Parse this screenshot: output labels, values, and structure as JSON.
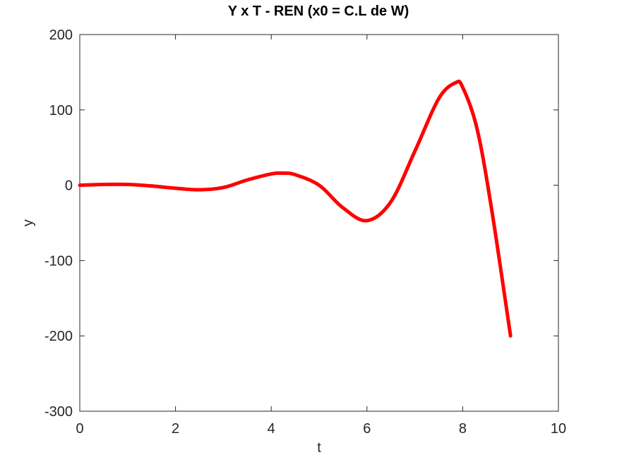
{
  "chart_data": {
    "type": "line",
    "title": "Y x T - REN (x0 = C.L de W)",
    "xlabel": "t",
    "ylabel": "y",
    "xlim": [
      0,
      10
    ],
    "ylim": [
      -300,
      200
    ],
    "xticks": [
      "0",
      "2",
      "4",
      "6",
      "8",
      "10"
    ],
    "yticks": [
      "200",
      "100",
      "0",
      "-100",
      "-200",
      "-300"
    ],
    "grid": false,
    "line_color": "#ff0000",
    "series": [
      {
        "x": [
          0,
          0.5,
          1.0,
          1.5,
          2.0,
          2.5,
          3.0,
          3.5,
          4.0,
          4.25,
          4.5,
          5.0,
          5.5,
          6.0,
          6.5,
          7.0,
          7.5,
          7.85,
          8.0,
          8.3,
          8.6,
          9.0
        ],
        "y": [
          0,
          1,
          1,
          -1,
          -4,
          -6,
          -3,
          7,
          15,
          16,
          14,
          0,
          -30,
          -47,
          -22,
          45,
          115,
          136,
          130,
          75,
          -30,
          -200
        ]
      }
    ]
  }
}
